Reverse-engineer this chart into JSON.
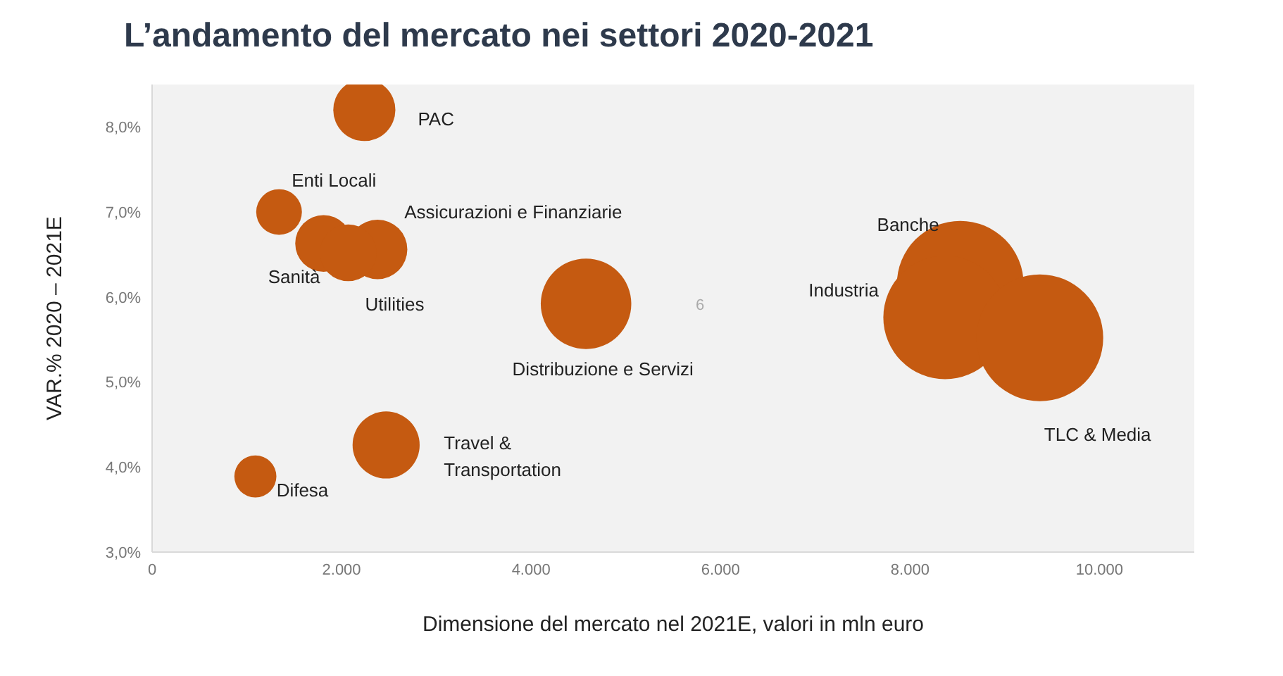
{
  "chart_data": {
    "type": "bubble",
    "title": "L’andamento del mercato nei settori 2020-2021",
    "xlabel": "Dimensione del mercato nel 2021E, valori in mln euro",
    "ylabel": "VAR.%  2020 – 2021E",
    "annotations": [
      "6"
    ],
    "xlim": [
      0,
      11000
    ],
    "xticks": [
      0,
      {
        "value": 2000,
        "label": "2.000"
      },
      {
        "value": 4000,
        "label": "4.000"
      },
      {
        "value": 6000,
        "label": "6.000"
      },
      {
        "value": 8000,
        "label": "8.000"
      },
      {
        "value": 10000,
        "label": "10.000"
      }
    ],
    "ylim": [
      3,
      8.5
    ],
    "yticks": [
      {
        "value": 3,
        "label": "3,0%"
      },
      {
        "value": 4,
        "label": "4,0%"
      },
      {
        "value": 5,
        "label": "5,0%"
      },
      {
        "value": 6,
        "label": "6,0%"
      },
      {
        "value": 7,
        "label": "7,0%"
      },
      {
        "value": 8,
        "label": "8,0%"
      }
    ],
    "grid": false,
    "legend": false,
    "series": [
      {
        "name": "PAC",
        "color": "#c55a11",
        "x": [
          2240
        ],
        "values": [
          8.2
        ],
        "sizes": [
          0.24
        ]
      },
      {
        "name": "Enti Locali",
        "color": "#c55a11",
        "x": [
          1340
        ],
        "values": [
          7.0
        ],
        "sizes": [
          0.13
        ]
      },
      {
        "name": "Sanità",
        "color": "#c55a11",
        "x": [
          1810
        ],
        "values": [
          6.63
        ],
        "sizes": [
          0.2
        ]
      },
      {
        "name": "Assicurazioni e Finanziarie",
        "color": "#c55a11",
        "x": [
          2380
        ],
        "values": [
          6.56
        ],
        "sizes": [
          0.22
        ]
      },
      {
        "name": "Utilities",
        "color": "#c55a11",
        "x": [
          2070
        ],
        "values": [
          6.52
        ],
        "sizes": [
          0.2
        ]
      },
      {
        "name": "Distribuzione e Servizi",
        "color": "#c55a11",
        "x": [
          4580
        ],
        "values": [
          5.92
        ],
        "sizes": [
          0.51
        ]
      },
      {
        "name": "Travel & Transportation",
        "color": "#c55a11",
        "x": [
          2470
        ],
        "values": [
          4.26
        ],
        "sizes": [
          0.28
        ]
      },
      {
        "name": "Difesa",
        "color": "#c55a11",
        "x": [
          1090
        ],
        "values": [
          3.89
        ],
        "sizes": [
          0.11
        ]
      },
      {
        "name": "Banche",
        "color": "#c55a11",
        "x": [
          8530
        ],
        "values": [
          6.15
        ],
        "sizes": [
          1
        ]
      },
      {
        "name": "Industria",
        "color": "#c55a11",
        "x": [
          8370
        ],
        "values": [
          5.76
        ],
        "sizes": [
          0.95
        ]
      },
      {
        "name": "TLC & Media",
        "color": "#c55a11",
        "x": [
          9370
        ],
        "values": [
          5.52
        ],
        "sizes": [
          1
        ]
      }
    ]
  }
}
